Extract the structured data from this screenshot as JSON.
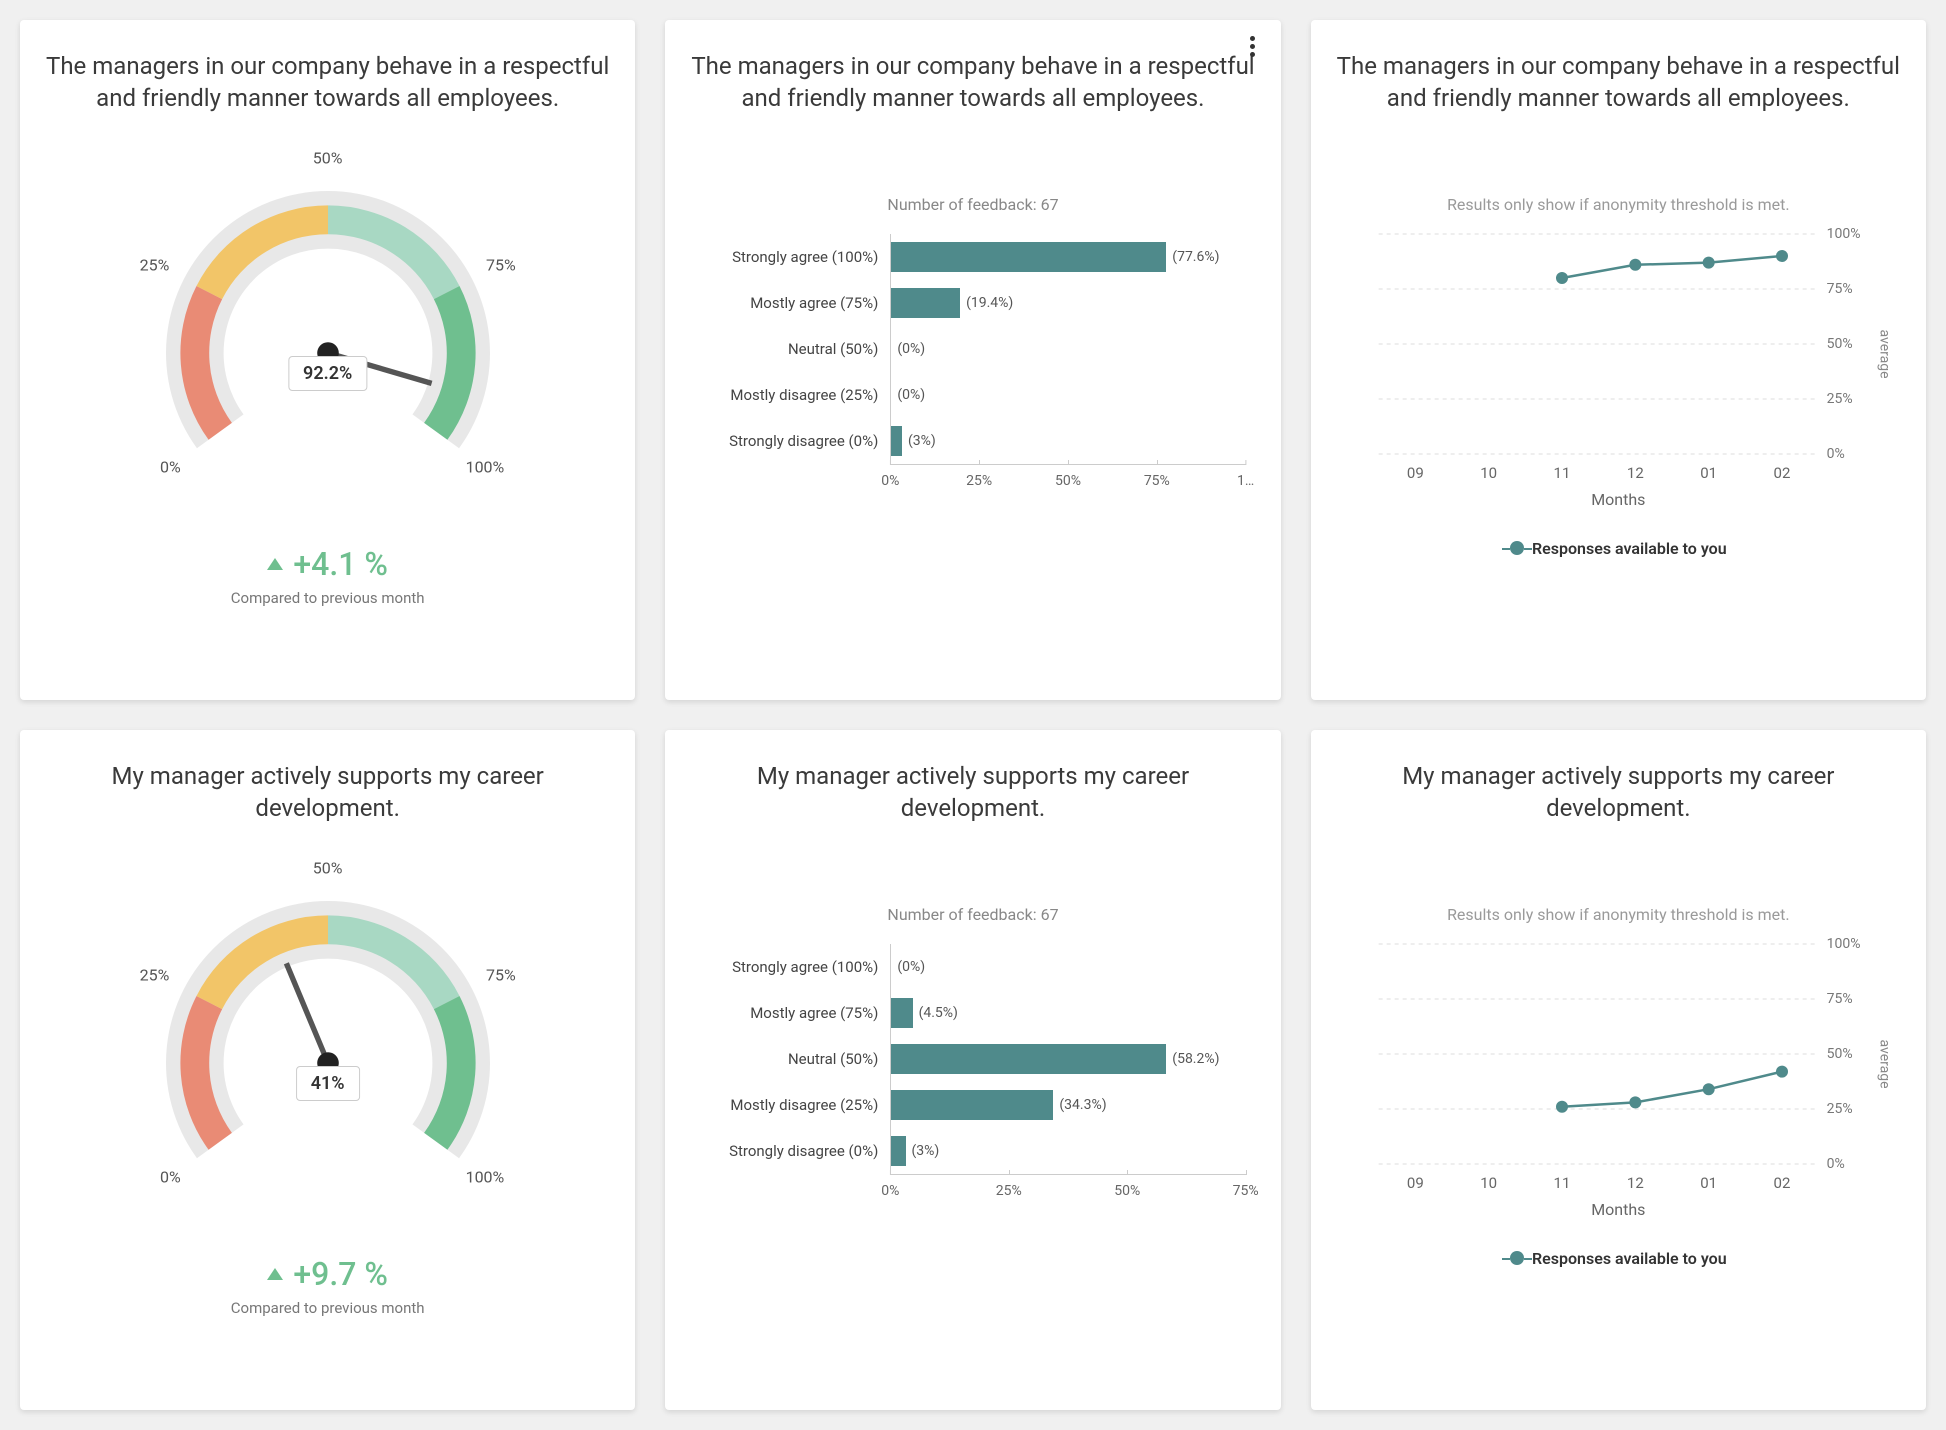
{
  "colors": {
    "card_bg": "#ffffff",
    "page_bg": "#f0f0f0",
    "text": "#333333",
    "muted": "#888888",
    "bar_fill": "#4f8a8b",
    "line": "#4f8a8b",
    "delta_positive": "#6fbf8f",
    "gauge_red": "#e98b75",
    "gauge_orange": "#f2c568",
    "gauge_lightgreen": "#a8d8c3",
    "gauge_green": "#6fbf8f",
    "gauge_track": "#e8e8e8"
  },
  "cards": [
    {
      "id": "gauge1",
      "type": "gauge",
      "title": "The managers in our company behave in a respectful and friendly manner towards all employees.",
      "value_pct": 92.2,
      "value_label": "92.2%",
      "ticks": [
        "0%",
        "25%",
        "50%",
        "75%",
        "100%"
      ],
      "delta": "+4.1 %",
      "delta_direction": "up",
      "delta_caption": "Compared to previous month"
    },
    {
      "id": "bars1",
      "type": "bars",
      "title": "The managers in our company behave in a respectful and friendly manner towards all employees.",
      "show_more": true,
      "feedback_label": "Number of feedback: 67",
      "x_ticks": [
        0,
        25,
        50,
        75,
        100
      ],
      "x_tick_labels": [
        "0%",
        "25%",
        "50%",
        "75%",
        "1…"
      ],
      "x_max": 100,
      "rows": [
        {
          "label": "Strongly agree (100%)",
          "value": 77.6,
          "pct_label": "(77.6%)"
        },
        {
          "label": "Mostly agree (75%)",
          "value": 19.4,
          "pct_label": "(19.4%)"
        },
        {
          "label": "Neutral (50%)",
          "value": 0,
          "pct_label": "(0%)"
        },
        {
          "label": "Mostly disagree (25%)",
          "value": 0,
          "pct_label": "(0%)"
        },
        {
          "label": "Strongly disagree (0%)",
          "value": 3,
          "pct_label": "(3%)"
        }
      ]
    },
    {
      "id": "line1",
      "type": "line",
      "title": "The managers in our company behave in a respectful and friendly manner towards all employees.",
      "anonymity_note": "Results only show if anonymity threshold is met.",
      "y_ticks": [
        0,
        25,
        50,
        75,
        100
      ],
      "y_tick_labels": [
        "0%",
        "25%",
        "50%",
        "75%",
        "100%"
      ],
      "y_axis_label": "average",
      "x_categories": [
        "09",
        "10",
        "11",
        "12",
        "01",
        "02"
      ],
      "x_axis_title": "Months",
      "series": {
        "name": "Responses available to you",
        "points": [
          {
            "x": "11",
            "y": 80
          },
          {
            "x": "12",
            "y": 86
          },
          {
            "x": "01",
            "y": 87
          },
          {
            "x": "02",
            "y": 90
          }
        ]
      }
    },
    {
      "id": "gauge2",
      "type": "gauge",
      "title": "My manager actively supports my career development.",
      "value_pct": 41,
      "value_label": "41%",
      "ticks": [
        "0%",
        "25%",
        "50%",
        "75%",
        "100%"
      ],
      "delta": "+9.7 %",
      "delta_direction": "up",
      "delta_caption": "Compared to previous month"
    },
    {
      "id": "bars2",
      "type": "bars",
      "title": "My manager actively supports my career development.",
      "feedback_label": "Number of feedback: 67",
      "x_ticks": [
        0,
        25,
        50,
        75
      ],
      "x_tick_labels": [
        "0%",
        "25%",
        "50%",
        "75%"
      ],
      "x_max": 75,
      "rows": [
        {
          "label": "Strongly agree (100%)",
          "value": 0,
          "pct_label": "(0%)"
        },
        {
          "label": "Mostly agree (75%)",
          "value": 4.5,
          "pct_label": "(4.5%)"
        },
        {
          "label": "Neutral (50%)",
          "value": 58.2,
          "pct_label": "(58.2%)"
        },
        {
          "label": "Mostly disagree (25%)",
          "value": 34.3,
          "pct_label": "(34.3%)"
        },
        {
          "label": "Strongly disagree (0%)",
          "value": 3,
          "pct_label": "(3%)"
        }
      ]
    },
    {
      "id": "line2",
      "type": "line",
      "title": "My manager actively supports my career development.",
      "anonymity_note": "Results only show if anonymity threshold is met.",
      "y_ticks": [
        0,
        25,
        50,
        75,
        100
      ],
      "y_tick_labels": [
        "0%",
        "25%",
        "50%",
        "75%",
        "100%"
      ],
      "y_axis_label": "average",
      "x_categories": [
        "09",
        "10",
        "11",
        "12",
        "01",
        "02"
      ],
      "x_axis_title": "Months",
      "series": {
        "name": "Responses available to you",
        "points": [
          {
            "x": "11",
            "y": 26
          },
          {
            "x": "12",
            "y": 28
          },
          {
            "x": "01",
            "y": 34
          },
          {
            "x": "02",
            "y": 42
          }
        ]
      }
    }
  ]
}
